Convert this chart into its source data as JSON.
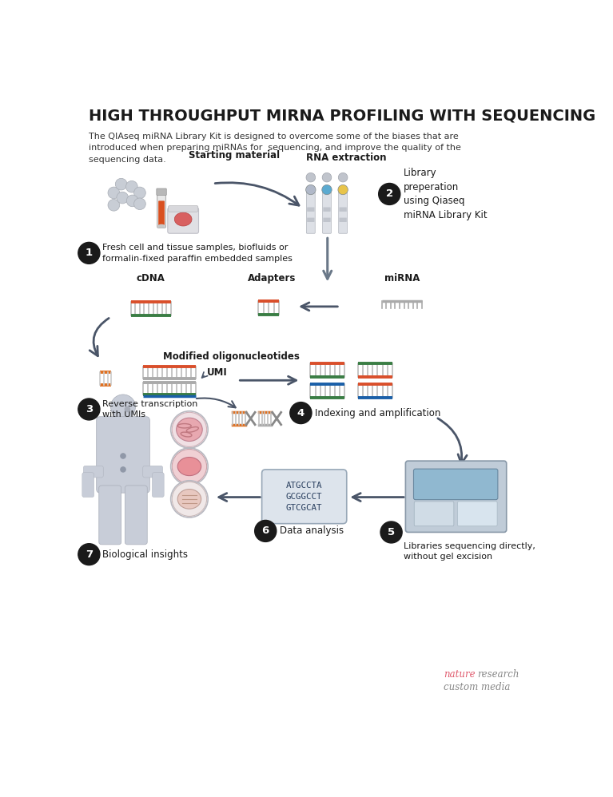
{
  "title": "HIGH THROUGHPUT MIRNA PROFILING WITH SEQUENCING",
  "subtitle": "The QIAseq miRNA Library Kit is designed to overcome some of the biases that are\nintroduced when preparing miRNAs for  sequencing, and improve the quality of the\nsequencing data.",
  "bg_color": "#ffffff",
  "title_color": "#1a1a1a",
  "step1_text": "Fresh cell and tissue samples, biofluids or\nformalin-fixed paraffin embedded samples",
  "step2_text": "Library\npreperation\nusing Qiaseq\nmiRNA Library Kit",
  "step3_text": "Reverse transcription\nwith UMIs",
  "step4_text": "Indexing and amplification",
  "step5_text": "Libraries sequencing directly,\nwithout gel excision",
  "step6_text": "Data analysis",
  "step7_text": "Biological insights",
  "label_starting": "Starting material",
  "label_rna": "RNA extraction",
  "label_cdna": "cDNA",
  "label_adapters": "Adapters",
  "label_mirna": "miRNA",
  "label_modified": "Modified oligonucleotides",
  "label_umi": "UMI",
  "seq_text": "ATGCCTA\nGCGGCCT\nGTCGCAT",
  "nature_red": "#e05a6d",
  "nature_gray": "#888888",
  "arrow_color": "#4a5568",
  "red": "#d94f2b",
  "green": "#3a7d44",
  "blue": "#1a5fa8",
  "orange": "#e07020",
  "gray_dna": "#9a9a9a",
  "human_color": "#c8cdd8"
}
